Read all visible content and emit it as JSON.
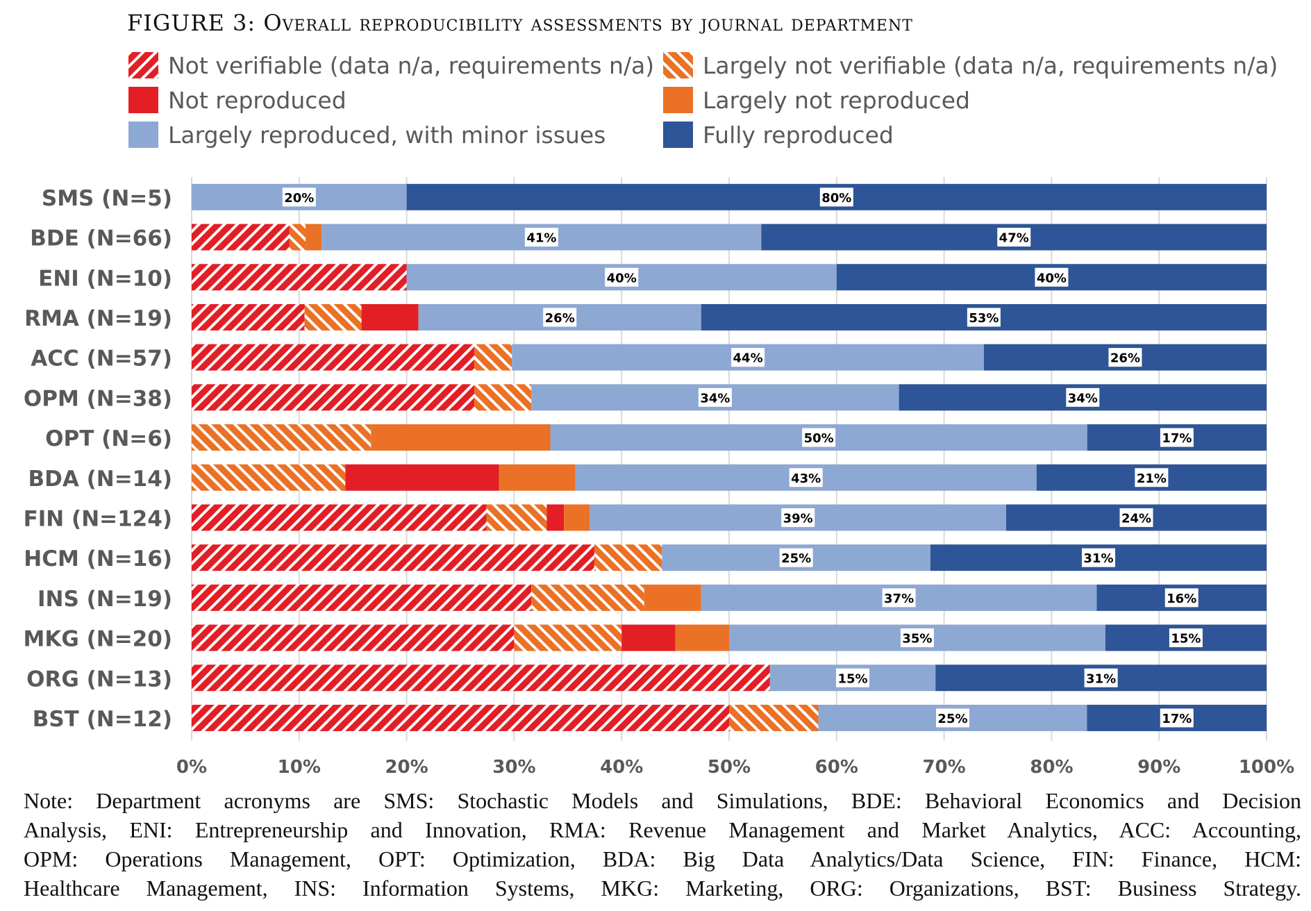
{
  "figure": {
    "title": "FIGURE 3: Overall reproducibility assessments by journal department",
    "note_lines": [
      "Note:  Department acronyms are SMS: Stochastic Models and Simulations, BDE: Behavioral Economics and Decision",
      "Analysis, ENI: Entrepreneurship and Innovation, RMA: Revenue Management and Market Analytics, ACC: Accounting,",
      "OPM: Operations Management, OPT: Optimization, BDA: Big Data Analytics/Data Science, FIN: Finance, HCM:",
      "Healthcare Management, INS: Information Systems, MKG: Marketing, ORG: Organizations, BST: Business Strategy."
    ]
  },
  "colors": {
    "not_verifiable": "#e31e24",
    "largely_not_verifiable": "#ea7125",
    "not_reproduced": "#e31e24",
    "largely_not_reproduced": "#ea7125",
    "largely_reproduced": "#8ea8d4",
    "fully_reproduced": "#2e5597",
    "grid": "#d9d9d9",
    "tick_text": "#595959"
  },
  "chart_data": {
    "type": "bar",
    "orientation": "horizontal",
    "stacked": "percent",
    "title": "FIGURE 3: Overall reproducibility assessments by journal department",
    "xlabel": "",
    "ylabel": "",
    "xlim": [
      0,
      100
    ],
    "x_ticks": [
      "0%",
      "10%",
      "20%",
      "30%",
      "40%",
      "50%",
      "60%",
      "70%",
      "80%",
      "90%",
      "100%"
    ],
    "grid": true,
    "legend_position": "top",
    "categories": [
      "SMS (N=5)",
      "BDE (N=66)",
      "ENI (N=10)",
      "RMA (N=19)",
      "ACC (N=57)",
      "OPM (N=38)",
      "OPT (N=6)",
      "BDA (N=14)",
      "FIN (N=124)",
      "HCM (N=16)",
      "INS (N=19)",
      "MKG (N=20)",
      "ORG (N=13)",
      "BST (N=12)"
    ],
    "series": [
      {
        "key": "not_verifiable",
        "name": "Not verifiable (data n/a, requirements n/a)",
        "pattern": "hatch-forward",
        "values": [
          0,
          9.1,
          20.0,
          10.5,
          26.3,
          26.3,
          0,
          0,
          27.4,
          37.5,
          31.6,
          30.0,
          53.8,
          50.0
        ]
      },
      {
        "key": "largely_not_verifiable",
        "name": "Largely not verifiable (data n/a, requirements n/a)",
        "pattern": "hatch-backward",
        "values": [
          0,
          1.5,
          0,
          5.3,
          3.5,
          5.3,
          16.7,
          14.3,
          5.6,
          6.3,
          10.5,
          10.0,
          0,
          8.3
        ]
      },
      {
        "key": "not_reproduced",
        "name": "Not reproduced",
        "pattern": "solid",
        "values": [
          0,
          0,
          0,
          5.3,
          0,
          0,
          0,
          14.3,
          1.6,
          0,
          0,
          5.0,
          0,
          0
        ]
      },
      {
        "key": "largely_not_reproduced",
        "name": "Largely not reproduced",
        "pattern": "solid",
        "values": [
          0,
          1.5,
          0,
          0,
          0,
          0,
          16.7,
          7.1,
          2.4,
          0,
          5.3,
          5.0,
          0,
          0
        ]
      },
      {
        "key": "largely_reproduced",
        "name": "Largely reproduced, with minor issues",
        "pattern": "solid",
        "values": [
          20.0,
          40.9,
          40.0,
          26.3,
          43.9,
          34.2,
          50.0,
          42.9,
          38.7,
          25.0,
          36.8,
          35.0,
          15.4,
          25.0
        ],
        "data_labels": [
          "20%",
          "41%",
          "40%",
          "26%",
          "44%",
          "34%",
          "50%",
          "43%",
          "39%",
          "25%",
          "37%",
          "35%",
          "15%",
          "25%"
        ]
      },
      {
        "key": "fully_reproduced",
        "name": "Fully reproduced",
        "pattern": "solid",
        "values": [
          80.0,
          47.0,
          40.0,
          52.6,
          26.3,
          34.2,
          16.7,
          21.4,
          24.2,
          31.3,
          15.8,
          15.0,
          30.8,
          16.7
        ],
        "data_labels": [
          "80%",
          "47%",
          "40%",
          "53%",
          "26%",
          "34%",
          "17%",
          "21%",
          "24%",
          "31%",
          "16%",
          "15%",
          "31%",
          "17%"
        ]
      }
    ]
  }
}
